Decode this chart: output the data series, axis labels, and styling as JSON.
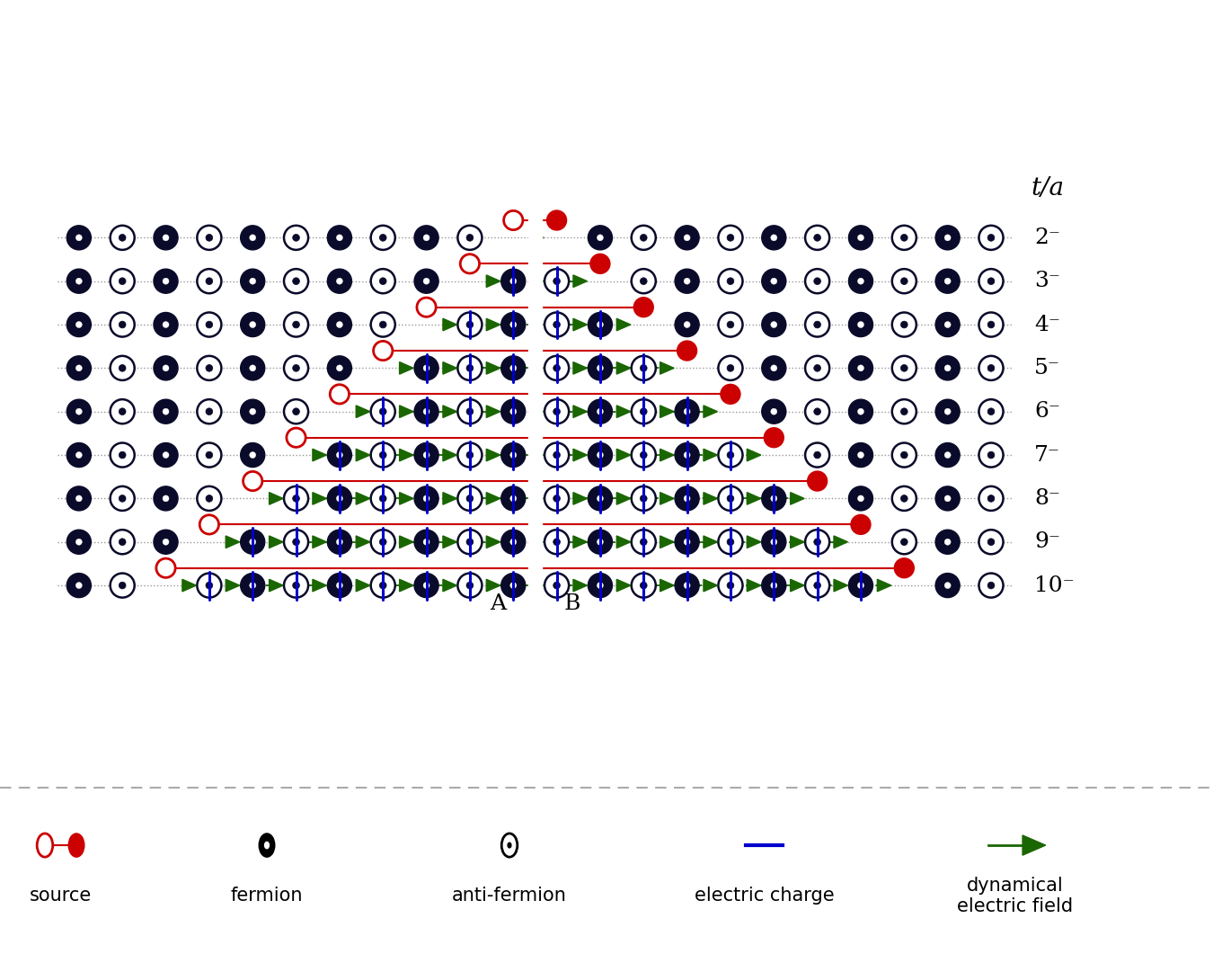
{
  "fig_width": 13.5,
  "fig_height": 10.61,
  "dpi": 100,
  "bg_color": "#e0e0e0",
  "time_labels": [
    "2⁻",
    "3⁻",
    "4⁻",
    "5⁻",
    "6⁻",
    "7⁻",
    "8⁻",
    "9⁻",
    "10⁻"
  ],
  "ta_label": "t/a",
  "n_rows": 9,
  "n_sites": 22,
  "green_color": "#1a6600",
  "blue_color": "#0000cc",
  "red_color": "#cc0000",
  "dark_color": "#0a0a2a",
  "AB_label_A": "A",
  "AB_label_B": "B",
  "ta_fontsize": 20,
  "row_label_fontsize": 18,
  "ab_fontsize": 18,
  "legend_fontsize": 15
}
